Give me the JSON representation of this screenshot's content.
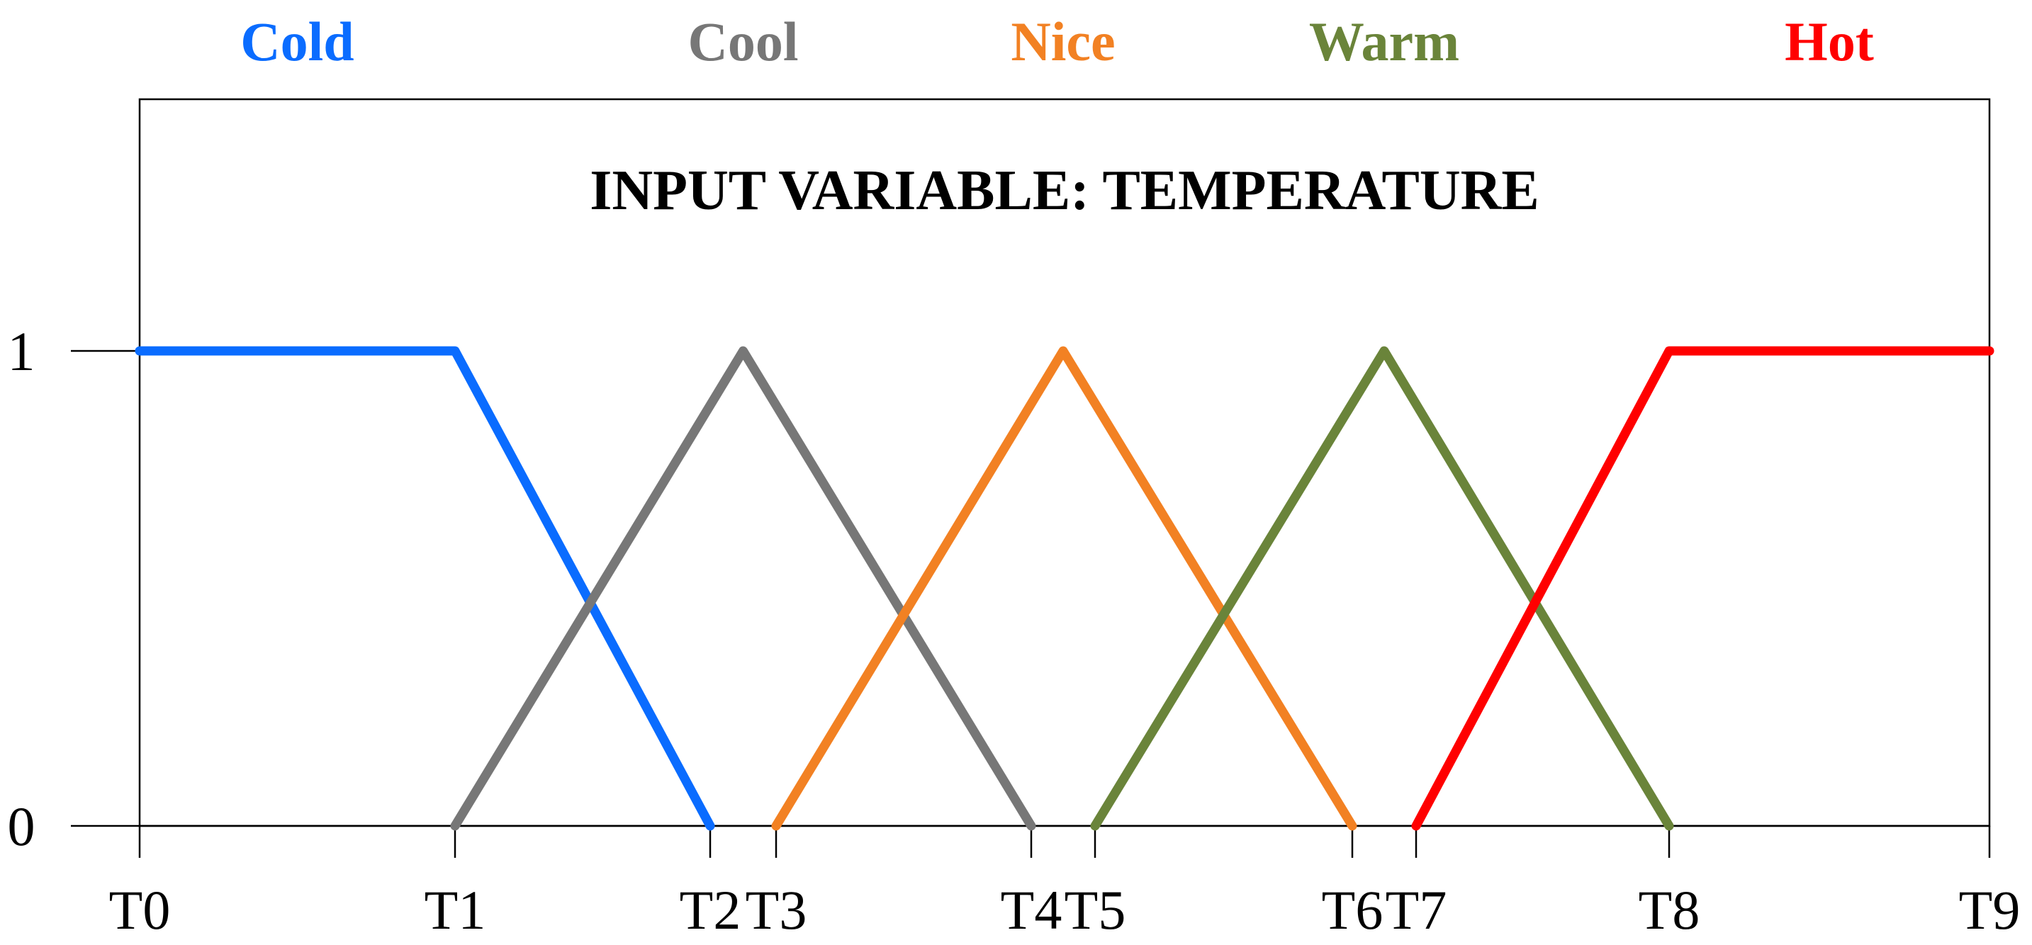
{
  "chart_data": {
    "type": "line",
    "title": "INPUT VARIABLE: TEMPERATURE",
    "xlabel": "",
    "ylabel": "",
    "x_ticks": [
      "T0",
      "T1",
      "T2",
      "T3",
      "T4",
      "T5",
      "T6",
      "T7",
      "T8",
      "T9"
    ],
    "y_ticks": [
      "0",
      "1"
    ],
    "ylim": [
      0,
      1
    ],
    "grid": false,
    "legend": "top (category labels above plot)",
    "series": [
      {
        "name": "Cold",
        "color": "#0a6cff",
        "points": [
          [
            "T0",
            1
          ],
          [
            "T1",
            1
          ],
          [
            "T2",
            0
          ]
        ]
      },
      {
        "name": "Cool",
        "color": "#777777",
        "points": [
          [
            "T1",
            0
          ],
          [
            "T2+T3 midpoint",
            1
          ],
          [
            "T4",
            0
          ]
        ]
      },
      {
        "name": "Nice",
        "color": "#f28123",
        "points": [
          [
            "T3",
            0
          ],
          [
            "T4+T5 midpoint",
            1
          ],
          [
            "T6",
            0
          ]
        ]
      },
      {
        "name": "Warm",
        "color": "#6a843a",
        "points": [
          [
            "T5",
            0
          ],
          [
            "T6+T7 midpoint",
            1
          ],
          [
            "T8",
            0
          ]
        ]
      },
      {
        "name": "Hot",
        "color": "#ff0000",
        "points": [
          [
            "T7",
            0
          ],
          [
            "T8",
            1
          ],
          [
            "T9",
            1
          ]
        ]
      }
    ]
  }
}
